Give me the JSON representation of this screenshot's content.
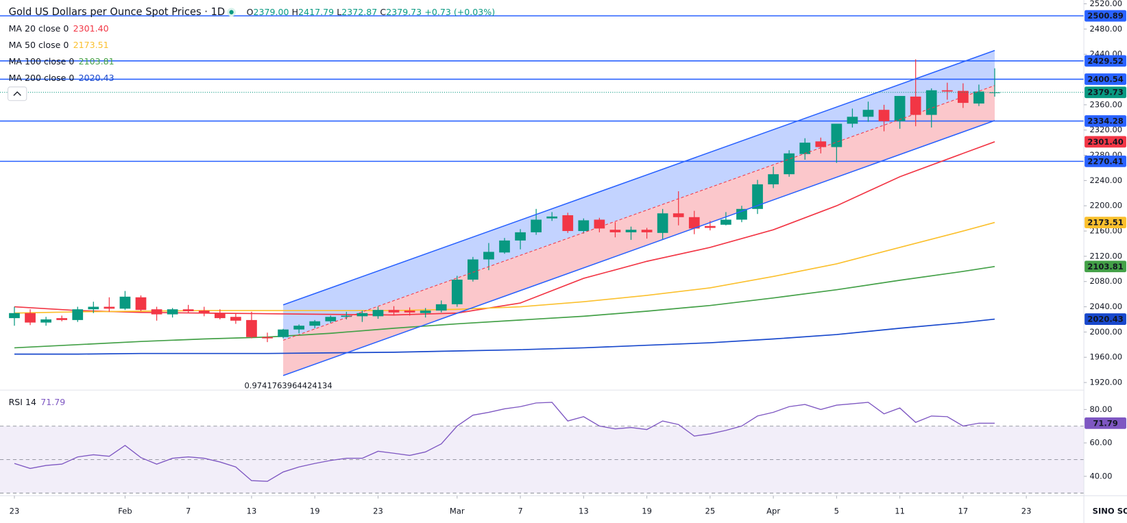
{
  "chart_data": {
    "type": "candlestick",
    "title": "Gold US Dollars per Ounce Spot Prices · 1D",
    "ohlc_header": [
      {
        "key": "O",
        "value": "2379.00"
      },
      {
        "key": "H",
        "value": "2417.79"
      },
      {
        "key": "L",
        "value": "2372.87"
      },
      {
        "key": "C",
        "value": "2379.73"
      }
    ],
    "change": "+0.73 (+0.03%)",
    "open": [
      2022,
      2030,
      2015,
      2022,
      2019,
      2036,
      2040,
      2037,
      2055,
      2036,
      2028,
      2036,
      2034,
      2030,
      2024,
      2019,
      1992,
      1992,
      2004,
      2010,
      2017,
      2024,
      2025,
      2025,
      2035,
      2034,
      2030,
      2034,
      2044,
      2083,
      2115,
      2126,
      2145,
      2158,
      2180,
      2185,
      2160,
      2178,
      2162,
      2158,
      2162,
      2157,
      2188,
      2182,
      2168,
      2170,
      2178,
      2195,
      2234,
      2250,
      2282,
      2302,
      2293,
      2330,
      2341,
      2352,
      2334,
      2373,
      2344,
      2383,
      2382,
      2362,
      2379
    ],
    "high": [
      2040,
      2036,
      2024,
      2026,
      2040,
      2048,
      2055,
      2065,
      2058,
      2040,
      2038,
      2043,
      2040,
      2036,
      2030,
      2032,
      1999,
      2005,
      2012,
      2019,
      2026,
      2032,
      2034,
      2040,
      2041,
      2039,
      2038,
      2050,
      2089,
      2119,
      2141,
      2149,
      2163,
      2195,
      2190,
      2189,
      2180,
      2181,
      2174,
      2167,
      2165,
      2195,
      2223,
      2192,
      2176,
      2190,
      2200,
      2241,
      2262,
      2288,
      2307,
      2308,
      2330,
      2354,
      2365,
      2360,
      2374,
      2432,
      2386,
      2395,
      2394,
      2392,
      2417.79
    ],
    "low": [
      2010,
      2011,
      2010,
      2017,
      2016,
      2030,
      2032,
      2035,
      2033,
      2018,
      2023,
      2030,
      2025,
      2020,
      2013,
      1990,
      1984,
      1990,
      1998,
      2006,
      2014,
      2020,
      2016,
      2021,
      2026,
      2026,
      2023,
      2031,
      2040,
      2080,
      2098,
      2124,
      2131,
      2154,
      2176,
      2157,
      2156,
      2158,
      2150,
      2146,
      2148,
      2147,
      2169,
      2155,
      2161,
      2169,
      2174,
      2187,
      2228,
      2246,
      2273,
      2283,
      2268,
      2324,
      2333,
      2318,
      2322,
      2326,
      2324,
      2368,
      2355,
      2358,
      2372.87
    ],
    "close": [
      2030,
      2015,
      2020,
      2019,
      2036,
      2040,
      2037,
      2056,
      2035,
      2028,
      2036,
      2033,
      2030,
      2022,
      2018,
      1992,
      1990,
      2004,
      2010,
      2017,
      2024,
      2026,
      2030,
      2035,
      2031,
      2031,
      2034,
      2044,
      2083,
      2115,
      2127,
      2145,
      2158,
      2178,
      2183,
      2160,
      2177,
      2164,
      2158,
      2162,
      2158,
      2188,
      2182,
      2164,
      2165,
      2178,
      2195,
      2234,
      2250,
      2283,
      2300,
      2293,
      2330,
      2341,
      2352,
      2334,
      2374,
      2344,
      2383,
      2381,
      2363,
      2381,
      2379.73
    ],
    "up_color": "#089981",
    "down_color": "#f23645",
    "last_price_label": "2379.73",
    "xlim": [
      -0.91,
      67.64
    ],
    "xticks": [
      {
        "value": 0,
        "label": "23"
      },
      {
        "value": 7,
        "label": "Feb"
      },
      {
        "value": 11,
        "label": "7"
      },
      {
        "value": 15,
        "label": "13"
      },
      {
        "value": 19,
        "label": "19"
      },
      {
        "value": 23,
        "label": "23"
      },
      {
        "value": 28,
        "label": "Mar"
      },
      {
        "value": 32,
        "label": "7"
      },
      {
        "value": 36,
        "label": "13"
      },
      {
        "value": 40,
        "label": "19"
      },
      {
        "value": 44,
        "label": "25"
      },
      {
        "value": 48,
        "label": "Apr"
      },
      {
        "value": 52,
        "label": "5"
      },
      {
        "value": 56,
        "label": "11"
      },
      {
        "value": 60,
        "label": "17"
      },
      {
        "value": 64,
        "label": "23"
      }
    ],
    "ylim": [
      1908,
      2526
    ],
    "yticks": [
      {
        "value": 1920,
        "label": "1920.00"
      },
      {
        "value": 1960,
        "label": "1960.00"
      },
      {
        "value": 2000,
        "label": "2000.00"
      },
      {
        "value": 2040,
        "label": "2040.00"
      },
      {
        "value": 2080,
        "label": "2080.00"
      },
      {
        "value": 2120,
        "label": "2120.00"
      },
      {
        "value": 2160,
        "label": "2160.00"
      },
      {
        "value": 2200,
        "label": "2200.00"
      },
      {
        "value": 2240,
        "label": "2240.00"
      },
      {
        "value": 2280,
        "label": "2280.00"
      },
      {
        "value": 2320,
        "label": "2320.00"
      },
      {
        "value": 2360,
        "label": "2360.00"
      },
      {
        "value": 2440,
        "label": "2440.00"
      },
      {
        "value": 2480,
        "label": "2480.00"
      },
      {
        "value": 2520,
        "label": "2520.00"
      }
    ],
    "levels": [
      {
        "value": 2500.89,
        "label": "2500.89"
      },
      {
        "value": 2429.52,
        "label": "2429.52"
      },
      {
        "value": 2400.54,
        "label": "2400.54"
      },
      {
        "value": 2334.28,
        "label": "2334.28"
      },
      {
        "value": 2270.41,
        "label": "2270.41"
      }
    ],
    "level_color": "#2962ff",
    "channel": {
      "x": [
        17,
        62
      ],
      "upper": [
        2043,
        2446
      ],
      "lower": [
        1931,
        2335
      ],
      "label": "0.9741763964424134"
    },
    "moving_averages": [
      {
        "name": "MA 20 close 0",
        "value_label": "2301.40",
        "color": "#f23645",
        "x": [
          0,
          4,
          8,
          12,
          16,
          20,
          24,
          28,
          32,
          36,
          40,
          44,
          48,
          52,
          56,
          60,
          62
        ],
        "values": [
          2040,
          2034,
          2031,
          2030,
          2029,
          2028,
          2027,
          2030,
          2046,
          2085,
          2112,
          2134,
          2162,
          2200,
          2246,
          2283,
          2301.4
        ]
      },
      {
        "name": "MA 50 close 0",
        "value_label": "2173.51",
        "color": "#fbc02d",
        "x": [
          0,
          4,
          8,
          12,
          16,
          20,
          24,
          28,
          32,
          36,
          40,
          44,
          48,
          52,
          56,
          60,
          62
        ],
        "values": [
          2030,
          2032,
          2033,
          2034,
          2034,
          2034,
          2034,
          2036,
          2040,
          2048,
          2058,
          2070,
          2088,
          2108,
          2134,
          2160,
          2173.51
        ]
      },
      {
        "name": "MA 100 close 0",
        "value_label": "2103.81",
        "color": "#43a047",
        "x": [
          0,
          4,
          8,
          12,
          16,
          20,
          24,
          28,
          32,
          36,
          40,
          44,
          48,
          52,
          56,
          60,
          62
        ],
        "values": [
          1975,
          1980,
          1985,
          1989,
          1992,
          1998,
          2006,
          2013,
          2019,
          2025,
          2033,
          2042,
          2054,
          2067,
          2082,
          2096,
          2103.81
        ]
      },
      {
        "name": "MA 200 close 0",
        "value_label": "2020.43",
        "color": "#1848cc",
        "x": [
          0,
          4,
          8,
          12,
          16,
          20,
          24,
          28,
          32,
          36,
          40,
          44,
          48,
          52,
          56,
          60,
          62
        ],
        "values": [
          1965,
          1965,
          1966,
          1966,
          1966,
          1967,
          1968,
          1970,
          1972,
          1975,
          1979,
          1983,
          1989,
          1996,
          2006,
          2015,
          2020.43
        ]
      }
    ],
    "rsi": {
      "name": "RSI 14",
      "value_label": "71.79",
      "color": "#7e57c2",
      "values": [
        47.7,
        44.7,
        46.5,
        47.3,
        51.6,
        52.9,
        52,
        58.5,
        51.2,
        47.3,
        50.8,
        51.6,
        50.8,
        48.6,
        45.6,
        37.4,
        37,
        42.6,
        45.6,
        47.7,
        49.5,
        50.8,
        50.8,
        55,
        53.8,
        52.5,
        54.6,
        59.4,
        70.1,
        76.6,
        78.3,
        80.4,
        81.7,
        83.9,
        84.3,
        73.1,
        75.7,
        70.1,
        68.4,
        69.2,
        68,
        73.1,
        71,
        64.1,
        65.4,
        67.5,
        70.1,
        76.1,
        78.3,
        81.7,
        83,
        80,
        82.6,
        83.4,
        84.3,
        77.4,
        80.9,
        72.3,
        76.1,
        75.7,
        70.1,
        71.8,
        71.79
      ],
      "ylim": [
        28.4,
        91.6
      ],
      "yticks": [
        {
          "value": 40,
          "label": "40.00"
        },
        {
          "value": 60,
          "label": "60.00"
        },
        {
          "value": 80,
          "label": "80.00"
        }
      ],
      "levels": [
        70,
        50,
        30
      ]
    },
    "watermark": "SINO SOUND"
  }
}
